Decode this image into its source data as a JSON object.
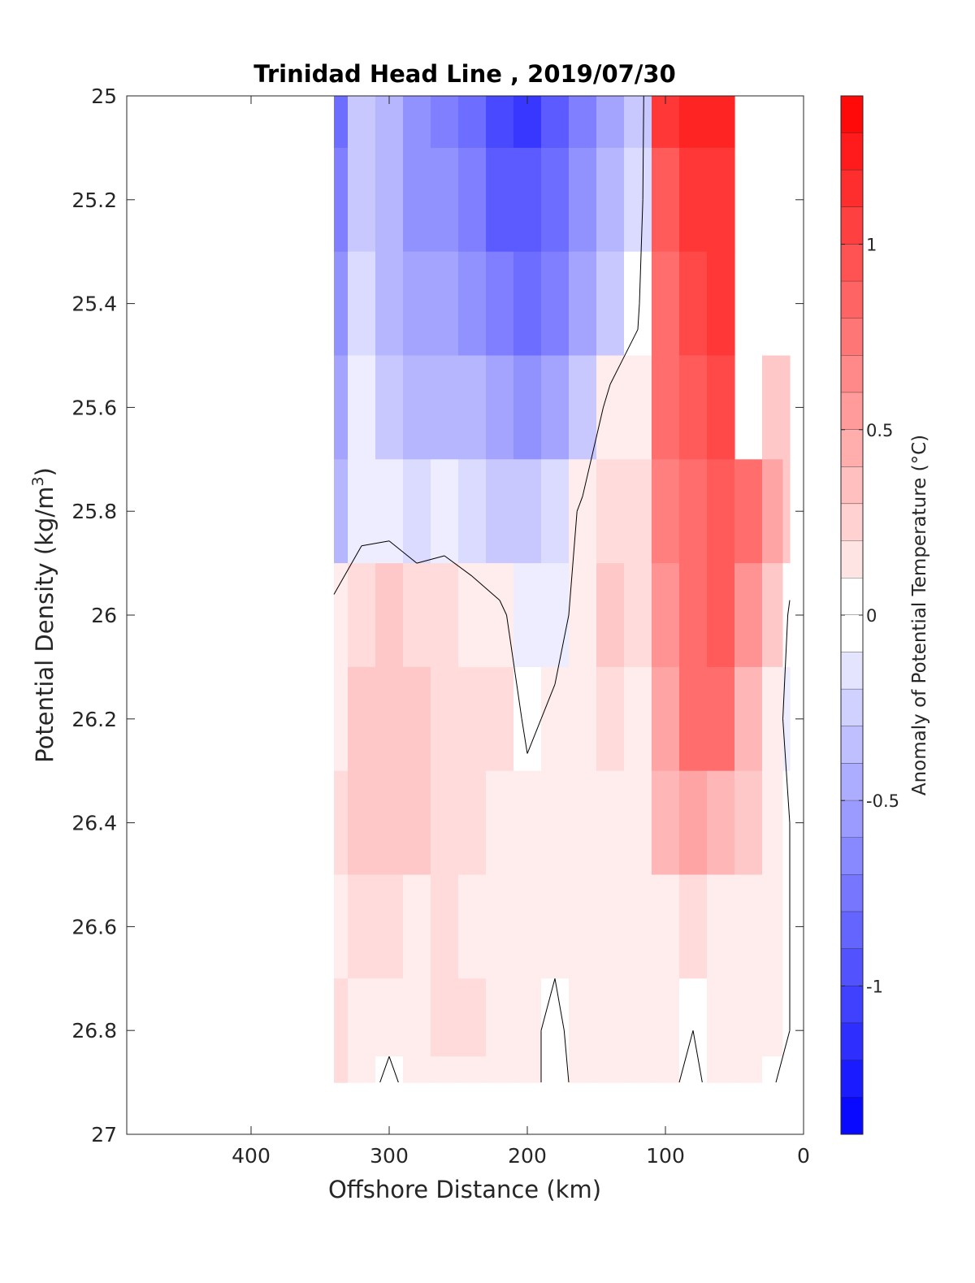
{
  "chart_data": {
    "type": "heatmap",
    "title": "Trinidad Head Line , 2019/07/30",
    "xlabel": "Offshore Distance (km)",
    "ylabel": "Potential Density (kg/m",
    "ylabel_superscript": "3",
    "ylabel_suffix": ")",
    "colorbar_label": "Anomaly of Potential Temperature (°C)",
    "x_direction": "reversed",
    "y_direction": "reversed",
    "xlim": [
      490,
      0
    ],
    "ylim": [
      25,
      27
    ],
    "x_ticks": [
      400,
      300,
      200,
      100,
      0
    ],
    "y_ticks": [
      25,
      25.2,
      25.4,
      25.6,
      25.8,
      26,
      26.2,
      26.4,
      26.6,
      26.8,
      27
    ],
    "y_tick_labels": [
      "25",
      "25.2",
      "25.4",
      "25.6",
      "25.8",
      "26",
      "26.2",
      "26.4",
      "26.6",
      "26.8",
      "27"
    ],
    "colorbar_range": [
      -1.4,
      1.4
    ],
    "colorbar_step": 0.1,
    "colorbar_ticks": [
      1,
      0.5,
      0,
      -0.5,
      -1
    ],
    "colorbar_tick_labels": [
      "1",
      "0.5",
      "0",
      "-0.5",
      "-1"
    ],
    "colormap": {
      "negative": "#0000ff",
      "zero": "#ffffff",
      "positive": "#ff0000"
    },
    "grid": false,
    "stations_km": [
      340,
      320,
      300,
      280,
      260,
      240,
      220,
      200,
      180,
      160,
      140,
      120,
      100,
      80,
      60,
      40,
      20,
      10
    ],
    "densities": [
      25.0,
      25.2,
      25.4,
      25.6,
      25.8,
      26.0,
      26.2,
      26.4,
      26.6,
      26.8,
      26.9
    ],
    "anomaly": [
      [
        -0.8,
        -0.3,
        -0.45,
        -0.6,
        -0.7,
        -0.85,
        -1.0,
        -1.1,
        -0.9,
        -0.75,
        -0.55,
        -0.3,
        1.1,
        1.2,
        1.2,
        null,
        null,
        null
      ],
      [
        -0.7,
        -0.3,
        -0.45,
        -0.6,
        -0.65,
        -0.75,
        -0.9,
        -0.95,
        -0.8,
        -0.65,
        -0.45,
        -0.2,
        0.9,
        1.1,
        1.15,
        null,
        null,
        null
      ],
      [
        -0.6,
        -0.25,
        -0.4,
        -0.5,
        -0.55,
        -0.6,
        -0.7,
        -0.8,
        -0.7,
        -0.55,
        -0.35,
        -0.05,
        0.8,
        1.0,
        1.1,
        null,
        null,
        null
      ],
      [
        -0.5,
        -0.15,
        -0.3,
        -0.4,
        -0.45,
        -0.45,
        -0.55,
        -0.6,
        -0.5,
        -0.3,
        0.1,
        0.15,
        0.8,
        0.9,
        1.0,
        null,
        0.3,
        0.3
      ],
      [
        -0.4,
        -0.1,
        -0.1,
        -0.2,
        -0.15,
        -0.25,
        -0.3,
        -0.3,
        -0.2,
        0.05,
        0.2,
        0.2,
        0.7,
        0.8,
        0.95,
        0.8,
        0.5,
        0.3
      ],
      [
        0.1,
        0.2,
        0.25,
        0.2,
        0.2,
        0.15,
        0.05,
        -0.15,
        -0.1,
        0.1,
        0.25,
        0.2,
        0.6,
        0.8,
        0.85,
        0.6,
        0.3,
        -0.05
      ],
      [
        0.15,
        0.25,
        0.3,
        0.25,
        0.2,
        0.2,
        0.2,
        -0.05,
        0.05,
        0.15,
        0.2,
        0.15,
        0.5,
        0.75,
        0.8,
        0.4,
        0.15,
        -0.15
      ],
      [
        0.2,
        0.25,
        0.3,
        0.25,
        0.2,
        0.2,
        0.15,
        0.1,
        0.05,
        0.1,
        0.15,
        0.15,
        0.4,
        0.5,
        0.4,
        0.25,
        0.1,
        0.0
      ],
      [
        0.15,
        0.2,
        0.2,
        0.15,
        0.2,
        0.15,
        0.15,
        0.05,
        0.05,
        0.1,
        0.1,
        0.1,
        0.15,
        0.2,
        0.15,
        0.15,
        0.05,
        0.0
      ],
      [
        0.2,
        0.15,
        0.05,
        0.15,
        0.2,
        0.2,
        0.1,
        0.05,
        -0.05,
        0.1,
        0.1,
        0.05,
        0.05,
        0.0,
        0.1,
        0.1,
        0.05,
        0.0
      ],
      [
        0.2,
        0.1,
        -0.05,
        0.1,
        0.1,
        0.1,
        0.05,
        0.05,
        -0.05,
        0.05,
        0.05,
        0.05,
        0.05,
        -0.05,
        0.1,
        0.05,
        0.0,
        0.0
      ]
    ]
  }
}
